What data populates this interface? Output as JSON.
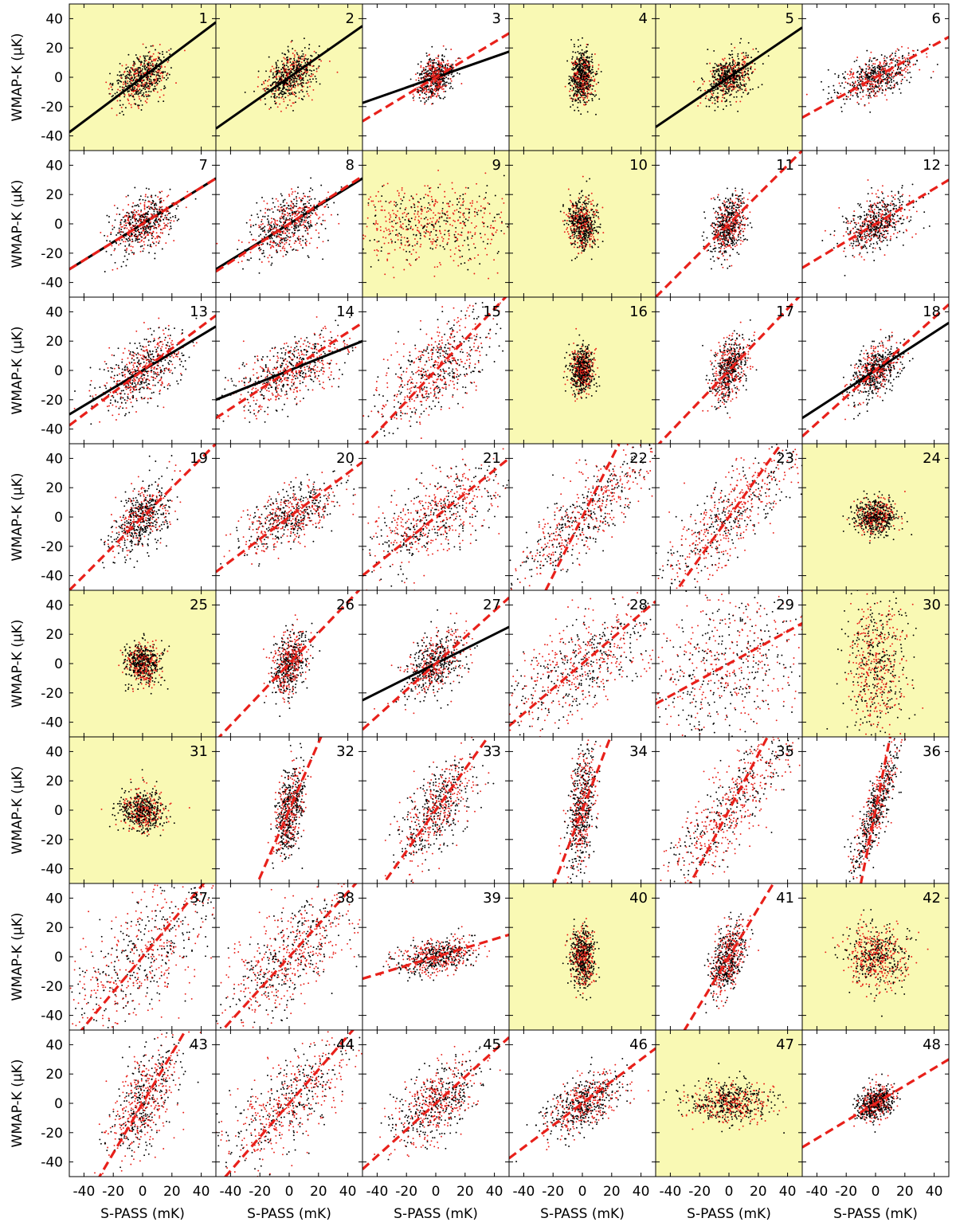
{
  "chart_data": {
    "type": "scatter",
    "layout": "grid of 48 panels, 8 rows x 6 columns",
    "xlabel": "S-PASS (mK)",
    "ylabel": "WMAP-K (μK)",
    "xlim": [
      -50,
      50
    ],
    "ylim": [
      -50,
      50
    ],
    "xticks": [
      -40,
      -20,
      0,
      20,
      40
    ],
    "yticks": [
      -40,
      -20,
      0,
      20,
      40
    ],
    "xtick_labels": [
      "-40",
      "-20",
      "0",
      "20",
      "40"
    ],
    "ytick_labels": [
      "-40",
      "-20",
      "0",
      "20",
      "40"
    ],
    "series_colors": {
      "set_a": "#000000",
      "set_b": "#e8201a"
    },
    "line_styles": {
      "solid": "black solid fit",
      "dashed": "red dashed fit"
    },
    "highlight_color": "#f9f9b4",
    "panels": [
      {
        "id": "1",
        "highlight": true,
        "sx": 9,
        "sy": 9,
        "red_frac": 0.35,
        "solid": [
          0.75,
          0
        ],
        "dashed": null
      },
      {
        "id": "2",
        "highlight": true,
        "sx": 9,
        "sy": 9,
        "red_frac": 0.35,
        "solid": [
          0.7,
          0
        ],
        "dashed": null
      },
      {
        "id": "3",
        "highlight": false,
        "sx": 6,
        "sy": 7,
        "red_frac": 0.45,
        "solid": [
          0.35,
          0
        ],
        "dashed": [
          0.6,
          0
        ]
      },
      {
        "id": "4",
        "highlight": true,
        "sx": 4,
        "sy": 9,
        "red_frac": 0.25,
        "solid": null,
        "dashed": null
      },
      {
        "id": "5",
        "highlight": true,
        "sx": 8,
        "sy": 8,
        "red_frac": 0.3,
        "solid": [
          0.68,
          0
        ],
        "dashed": null
      },
      {
        "id": "6",
        "highlight": false,
        "sx": 13,
        "sy": 8,
        "red_frac": 0.4,
        "solid": null,
        "dashed": [
          0.55,
          0
        ]
      },
      {
        "id": "7",
        "highlight": false,
        "sx": 10,
        "sy": 10,
        "red_frac": 0.45,
        "solid": [
          0.62,
          0
        ],
        "dashed": [
          0.62,
          0
        ]
      },
      {
        "id": "8",
        "highlight": false,
        "sx": 13,
        "sy": 11,
        "red_frac": 0.5,
        "solid": [
          0.62,
          0
        ],
        "dashed": [
          0.65,
          0
        ]
      },
      {
        "id": "9",
        "highlight": true,
        "sx": 28,
        "sy": 14,
        "red_frac": 0.65,
        "solid": null,
        "dashed": null
      },
      {
        "id": "10",
        "highlight": true,
        "sx": 5,
        "sy": 9,
        "red_frac": 0.35,
        "solid": null,
        "dashed": null
      },
      {
        "id": "11",
        "highlight": false,
        "sx": 6,
        "sy": 10,
        "red_frac": 0.35,
        "solid": null,
        "dashed": [
          1.0,
          0
        ]
      },
      {
        "id": "12",
        "highlight": false,
        "sx": 11,
        "sy": 9,
        "red_frac": 0.4,
        "solid": null,
        "dashed": [
          0.6,
          0
        ]
      },
      {
        "id": "13",
        "highlight": false,
        "sx": 14,
        "sy": 12,
        "red_frac": 0.5,
        "solid": [
          0.6,
          0
        ],
        "dashed": [
          0.75,
          0
        ]
      },
      {
        "id": "14",
        "highlight": false,
        "sx": 20,
        "sy": 13,
        "red_frac": 0.55,
        "solid": [
          0.4,
          0
        ],
        "dashed": [
          0.65,
          0
        ]
      },
      {
        "id": "15",
        "highlight": false,
        "sx": 20,
        "sy": 20,
        "red_frac": 0.55,
        "solid": null,
        "dashed": [
          1.05,
          0
        ]
      },
      {
        "id": "16",
        "highlight": true,
        "sx": 4,
        "sy": 8,
        "red_frac": 0.35,
        "solid": null,
        "dashed": null
      },
      {
        "id": "17",
        "highlight": false,
        "sx": 6,
        "sy": 11,
        "red_frac": 0.45,
        "solid": null,
        "dashed": [
          1.05,
          0
        ]
      },
      {
        "id": "18",
        "highlight": false,
        "sx": 9,
        "sy": 10,
        "red_frac": 0.35,
        "solid": [
          0.65,
          0
        ],
        "dashed": [
          0.9,
          0
        ]
      },
      {
        "id": "19",
        "highlight": false,
        "sx": 10,
        "sy": 12,
        "red_frac": 0.35,
        "solid": null,
        "dashed": [
          1.0,
          0
        ]
      },
      {
        "id": "20",
        "highlight": false,
        "sx": 16,
        "sy": 12,
        "red_frac": 0.5,
        "solid": null,
        "dashed": [
          0.75,
          0
        ]
      },
      {
        "id": "21",
        "highlight": false,
        "sx": 22,
        "sy": 17,
        "red_frac": 0.55,
        "solid": null,
        "dashed": [
          0.8,
          0
        ]
      },
      {
        "id": "22",
        "highlight": false,
        "sx": 25,
        "sy": 25,
        "red_frac": 0.55,
        "solid": null,
        "dashed": [
          2.0,
          0
        ]
      },
      {
        "id": "23",
        "highlight": false,
        "sx": 25,
        "sy": 25,
        "red_frac": 0.55,
        "solid": null,
        "dashed": [
          1.4,
          0
        ]
      },
      {
        "id": "24",
        "highlight": true,
        "sx": 7,
        "sy": 6,
        "red_frac": 0.35,
        "solid": null,
        "dashed": null
      },
      {
        "id": "25",
        "highlight": true,
        "sx": 6,
        "sy": 7,
        "red_frac": 0.35,
        "solid": null,
        "dashed": null
      },
      {
        "id": "26",
        "highlight": false,
        "sx": 6,
        "sy": 11,
        "red_frac": 0.45,
        "solid": null,
        "dashed": [
          1.05,
          0
        ]
      },
      {
        "id": "27",
        "highlight": false,
        "sx": 10,
        "sy": 11,
        "red_frac": 0.4,
        "solid": [
          0.5,
          0
        ],
        "dashed": [
          0.9,
          0
        ]
      },
      {
        "id": "28",
        "highlight": false,
        "sx": 25,
        "sy": 20,
        "red_frac": 0.5,
        "solid": null,
        "dashed": [
          0.85,
          0
        ]
      },
      {
        "id": "29",
        "highlight": false,
        "sx": 28,
        "sy": 28,
        "red_frac": 0.55,
        "solid": null,
        "dashed": [
          0.55,
          0
        ]
      },
      {
        "id": "30",
        "highlight": true,
        "sx": 10,
        "sy": 28,
        "red_frac": 0.5,
        "solid": null,
        "dashed": null
      },
      {
        "id": "31",
        "highlight": true,
        "sx": 8,
        "sy": 7,
        "red_frac": 0.4,
        "solid": null,
        "dashed": null
      },
      {
        "id": "32",
        "highlight": false,
        "sx": 5,
        "sy": 15,
        "red_frac": 0.45,
        "solid": null,
        "dashed": [
          2.3,
          0
        ]
      },
      {
        "id": "33",
        "highlight": false,
        "sx": 13,
        "sy": 18,
        "red_frac": 0.45,
        "solid": null,
        "dashed": [
          1.4,
          0
        ]
      },
      {
        "id": "34",
        "highlight": false,
        "sx": 5,
        "sy": 20,
        "red_frac": 0.45,
        "solid": null,
        "dashed": [
          2.6,
          0
        ]
      },
      {
        "id": "35",
        "highlight": false,
        "sx": 22,
        "sy": 28,
        "red_frac": 0.6,
        "solid": null,
        "dashed": [
          1.9,
          0
        ]
      },
      {
        "id": "36",
        "highlight": false,
        "sx": 8,
        "sy": 22,
        "red_frac": 0.4,
        "solid": null,
        "dashed": [
          5.0,
          0
        ]
      },
      {
        "id": "37",
        "highlight": false,
        "sx": 25,
        "sy": 28,
        "red_frac": 0.55,
        "solid": null,
        "dashed": [
          1.2,
          0
        ]
      },
      {
        "id": "38",
        "highlight": false,
        "sx": 22,
        "sy": 22,
        "red_frac": 0.55,
        "solid": null,
        "dashed": [
          1.1,
          0
        ]
      },
      {
        "id": "39",
        "highlight": false,
        "sx": 14,
        "sy": 6,
        "red_frac": 0.5,
        "solid": null,
        "dashed": [
          0.3,
          0
        ]
      },
      {
        "id": "40",
        "highlight": true,
        "sx": 4,
        "sy": 10,
        "red_frac": 0.35,
        "solid": null,
        "dashed": null
      },
      {
        "id": "41",
        "highlight": false,
        "sx": 6,
        "sy": 12,
        "red_frac": 0.45,
        "solid": null,
        "dashed": [
          1.65,
          0
        ]
      },
      {
        "id": "42",
        "highlight": true,
        "sx": 10,
        "sy": 11,
        "red_frac": 0.55,
        "solid": null,
        "dashed": null
      },
      {
        "id": "43",
        "highlight": false,
        "sx": 12,
        "sy": 20,
        "red_frac": 0.5,
        "solid": null,
        "dashed": [
          1.7,
          0
        ]
      },
      {
        "id": "44",
        "highlight": false,
        "sx": 22,
        "sy": 22,
        "red_frac": 0.55,
        "solid": null,
        "dashed": [
          1.15,
          0
        ]
      },
      {
        "id": "45",
        "highlight": false,
        "sx": 15,
        "sy": 14,
        "red_frac": 0.55,
        "solid": null,
        "dashed": [
          0.9,
          0
        ]
      },
      {
        "id": "46",
        "highlight": false,
        "sx": 13,
        "sy": 11,
        "red_frac": 0.45,
        "solid": null,
        "dashed": [
          0.75,
          0
        ]
      },
      {
        "id": "47",
        "highlight": true,
        "sx": 15,
        "sy": 7,
        "red_frac": 0.4,
        "solid": null,
        "dashed": null
      },
      {
        "id": "48",
        "highlight": false,
        "sx": 6,
        "sy": 6,
        "red_frac": 0.35,
        "solid": null,
        "dashed": [
          0.6,
          0
        ]
      }
    ]
  }
}
